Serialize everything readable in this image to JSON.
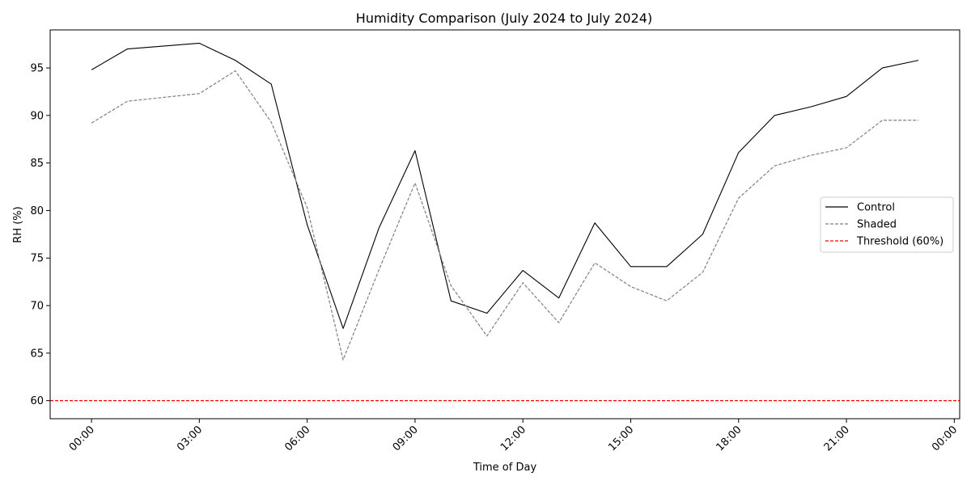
{
  "chart_data": {
    "type": "line",
    "title": "Humidity Comparison (July 2024 to July 2024)",
    "xlabel": "Time of Day",
    "ylabel": "RH (%)",
    "xlim": [
      -1.15,
      24.15
    ],
    "ylim": [
      58.1,
      99.0
    ],
    "x_ticks": [
      0,
      3,
      6,
      9,
      12,
      15,
      18,
      21,
      24
    ],
    "x_tick_labels": [
      "00:00",
      "03:00",
      "06:00",
      "09:00",
      "12:00",
      "15:00",
      "18:00",
      "21:00",
      "00:00"
    ],
    "y_ticks": [
      60,
      65,
      70,
      75,
      80,
      85,
      90,
      95
    ],
    "y_tick_labels": [
      "60",
      "65",
      "70",
      "75",
      "80",
      "85",
      "90",
      "95"
    ],
    "grid": false,
    "legend_position": "center-right",
    "x": [
      0,
      1,
      3,
      4,
      5,
      6,
      7,
      8,
      9,
      10,
      11,
      12,
      13,
      14,
      15,
      16,
      17,
      18,
      19,
      20,
      21,
      22,
      23
    ],
    "series": [
      {
        "name": "Control",
        "color": "#000000",
        "style": "solid",
        "values": [
          94.8,
          97.0,
          97.6,
          95.8,
          93.3,
          78.5,
          67.6,
          78.2,
          86.3,
          70.5,
          69.2,
          73.7,
          70.8,
          78.7,
          74.1,
          74.1,
          77.5,
          86.1,
          90.0,
          90.9,
          92.0,
          95.0,
          95.8
        ]
      },
      {
        "name": "Shaded",
        "color": "#808080",
        "style": "dashed",
        "values": [
          89.2,
          91.5,
          92.3,
          94.7,
          89.3,
          80.3,
          64.3,
          73.8,
          82.9,
          72.1,
          66.8,
          72.4,
          68.2,
          74.5,
          72.0,
          70.5,
          73.5,
          81.3,
          84.7,
          85.8,
          86.6,
          89.5,
          89.5
        ]
      }
    ],
    "reference_lines": [
      {
        "name": "Threshold (60%)",
        "y": 60,
        "color": "#ff0000",
        "style": "dashed"
      }
    ]
  }
}
